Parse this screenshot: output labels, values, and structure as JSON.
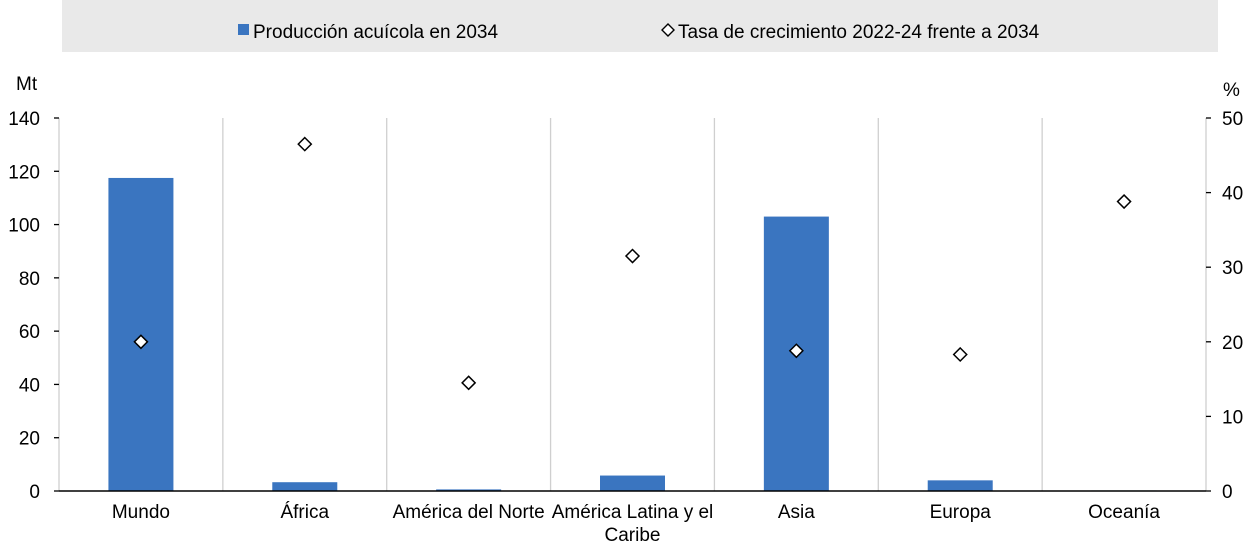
{
  "chart_data": {
    "type": "bar",
    "categories": [
      "Mundo",
      "África",
      "América del Norte",
      "América Latina y el Caribe",
      "Asia",
      "Europa",
      "Oceanía"
    ],
    "category_lines": [
      [
        "Mundo"
      ],
      [
        "África"
      ],
      [
        "América del Norte"
      ],
      [
        "América Latina y el",
        "Caribe"
      ],
      [
        "Asia"
      ],
      [
        "Europa"
      ],
      [
        "Oceanía"
      ]
    ],
    "series": [
      {
        "name": "Producción acuícola en 2034",
        "kind": "bar",
        "axis": "left",
        "color": "#3a75c0",
        "values": [
          117.5,
          3.3,
          0.6,
          5.8,
          103.0,
          4.0,
          0.2
        ]
      },
      {
        "name": "Tasa de crecimiento 2022-24 frente a 2034",
        "kind": "marker",
        "marker": "diamond",
        "axis": "right",
        "values": [
          20.0,
          46.5,
          14.5,
          31.5,
          18.8,
          18.3,
          38.8
        ]
      }
    ],
    "yleft": {
      "label": "Mt",
      "ylim": [
        0,
        140
      ],
      "ticks": [
        "0",
        "20",
        "40",
        "60",
        "80",
        "100",
        "120",
        "140"
      ]
    },
    "yright": {
      "label": "%",
      "ylim": [
        0,
        50
      ],
      "ticks": [
        "0",
        "10",
        "20",
        "30",
        "40",
        "50"
      ]
    },
    "grid": "vertical separators",
    "legend_position": "top"
  }
}
